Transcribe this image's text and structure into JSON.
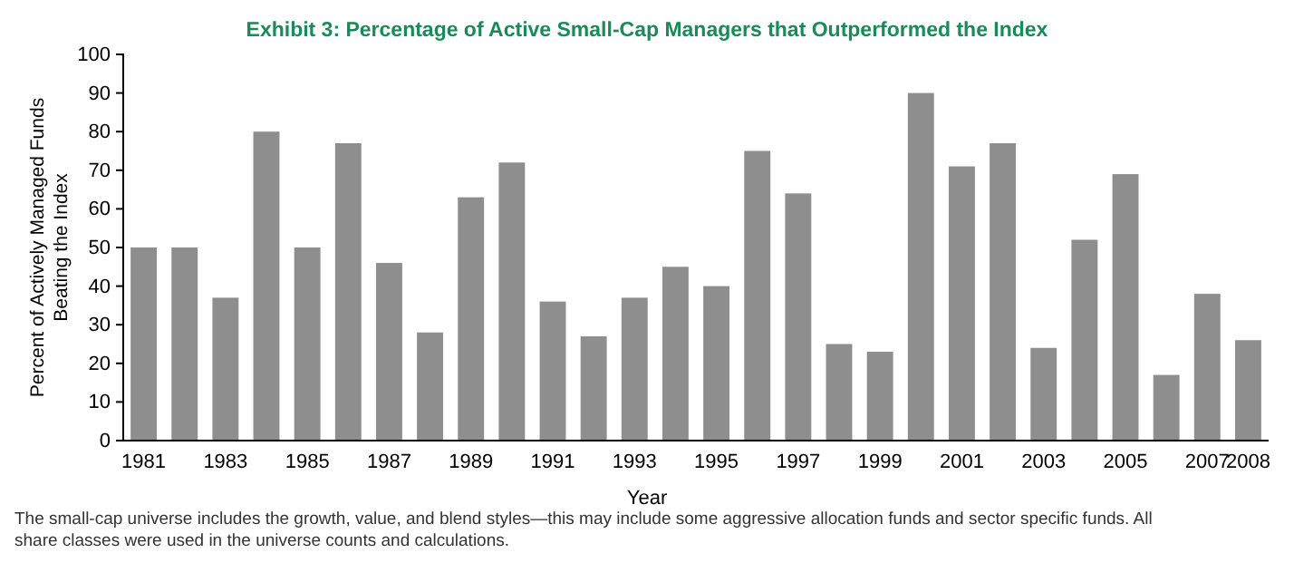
{
  "chart_data": {
    "type": "bar",
    "title": "Exhibit 3: Percentage of Active Small-Cap Managers that Outperformed the Index",
    "categories": [
      "1981",
      null,
      "1983",
      null,
      "1985",
      null,
      "1987",
      null,
      "1989",
      null,
      "1991",
      null,
      "1993",
      null,
      "1995",
      null,
      "1997",
      null,
      "1999",
      null,
      "2001",
      null,
      "2003",
      null,
      "2005",
      null,
      "2007",
      "2008"
    ],
    "values": [
      50,
      50,
      37,
      80,
      50,
      77,
      46,
      28,
      63,
      72,
      36,
      27,
      37,
      45,
      40,
      75,
      64,
      25,
      23,
      90,
      71,
      77,
      24,
      52,
      69,
      17,
      38,
      26
    ],
    "color": "#8e8e8e",
    "xlabel": "Year",
    "ylabel": "Percent of Actively Managed Funds Beating the Index",
    "ylim": [
      0,
      100
    ],
    "yticks": [
      0,
      10,
      20,
      30,
      40,
      50,
      60,
      70,
      80,
      90,
      100
    ],
    "grid": false,
    "annotations": [
      "The small-cap universe includes the growth, value, and blend styles—this may include some aggressive allocation funds and sector specific funds. All share classes were used in the universe counts and calculations."
    ]
  }
}
